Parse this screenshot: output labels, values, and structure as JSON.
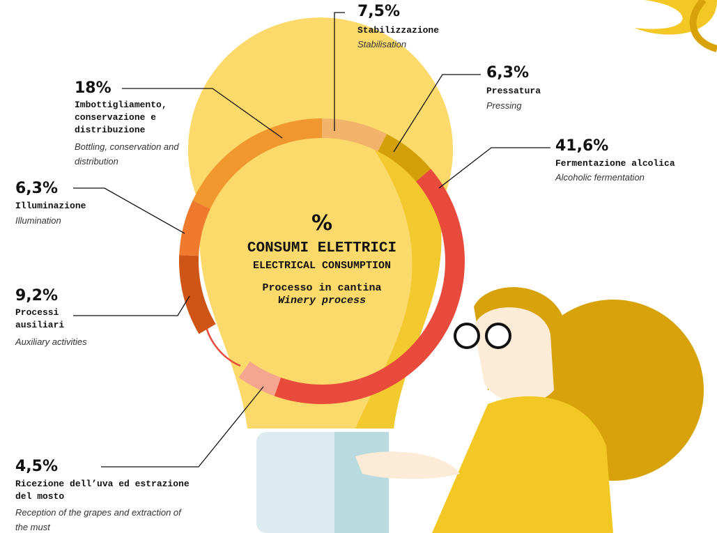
{
  "chart_data": {
    "type": "donut",
    "center_symbol": "%",
    "title": "CONSUMI ELETTRICI",
    "subtitle": "ELECTRICAL CONSUMPTION",
    "caption": "Processo in cantina",
    "caption_en": "Winery process",
    "categories": [
      "Stabilizzazione",
      "Pressatura",
      "Fermentazione alcolica",
      "Ricezione dell’uva ed estrazione del mosto",
      "Processi ausiliari",
      "Illuminazione",
      "Imbottigliamento, conservazione e distribuzione"
    ],
    "categories_en": [
      "Stabilisation",
      "Pressing",
      "Alcoholic fermentation",
      "Reception of the grapes and extraction of the must",
      "Auxiliary activities",
      "Illumination",
      "Bottling, conservation and distribution"
    ],
    "values": [
      7.5,
      6.3,
      41.6,
      4.5,
      9.2,
      6.3,
      18
    ],
    "value_labels": [
      "7,5%",
      "6,3%",
      "41,6%",
      "4,5%",
      "9,2%",
      "6,3%",
      "18%"
    ],
    "colors": [
      "#f2b46a",
      "#d4a00a",
      "#e84a3c",
      "#f4a68f",
      "#cf5517",
      "#ef7a2d",
      "#f0972f"
    ]
  }
}
